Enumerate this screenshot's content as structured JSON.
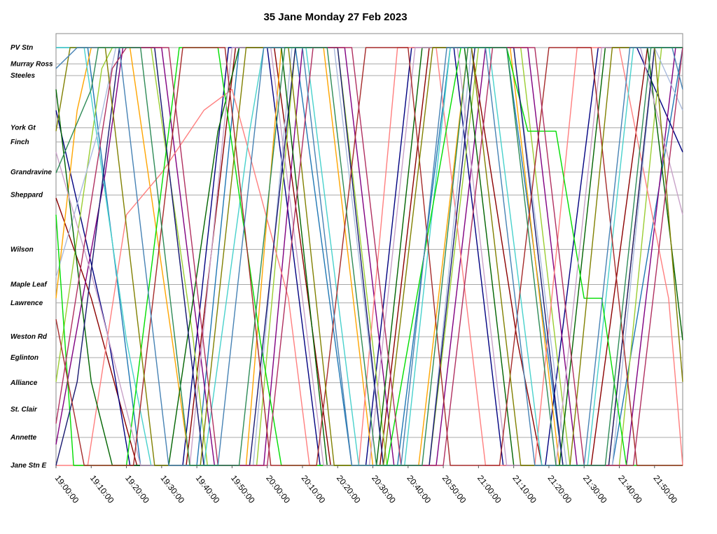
{
  "chart_data": {
    "type": "line",
    "title": "35 Jane Monday 27 Feb 2023",
    "xlabel": "",
    "ylabel": "",
    "grid": "horizontal lines at stops",
    "legend": "none",
    "x_axis": {
      "unit": "time of day",
      "range": [
        "19:00:00",
        "21:58:00"
      ],
      "ticks": [
        "19:00:00",
        "19:10:00",
        "19:20:00",
        "19:30:00",
        "19:40:00",
        "19:50:00",
        "20:00:00",
        "20:10:00",
        "20:20:00",
        "20:30:00",
        "20:40:00",
        "20:50:00",
        "21:00:00",
        "21:10:00",
        "21:20:00",
        "21:30:00",
        "21:40:00",
        "21:50:00"
      ]
    },
    "y_axis": {
      "unit": "stop position (0 = Jane Stn E, 100 = PV Stn)",
      "range": [
        0,
        100
      ],
      "stops": [
        {
          "name": "PV Stn",
          "pos": 100
        },
        {
          "name": "Murray Ross",
          "pos": 96.1
        },
        {
          "name": "Steeles",
          "pos": 93.3
        },
        {
          "name": "York Gt",
          "pos": 80.8
        },
        {
          "name": "Finch",
          "pos": 77.4
        },
        {
          "name": "Grandravine",
          "pos": 70.2
        },
        {
          "name": "Sheppard",
          "pos": 64.7
        },
        {
          "name": "Wilson",
          "pos": 51.7
        },
        {
          "name": "Maple Leaf",
          "pos": 43.3
        },
        {
          "name": "Lawrence",
          "pos": 38.9
        },
        {
          "name": "Weston Rd",
          "pos": 30.8
        },
        {
          "name": "Eglinton",
          "pos": 25.8
        },
        {
          "name": "Alliance",
          "pos": 19.8
        },
        {
          "name": "St. Clair",
          "pos": 13.4
        },
        {
          "name": "Annette",
          "pos": 6.7
        },
        {
          "name": "Jane Stn E",
          "pos": 0
        }
      ]
    },
    "series": [
      {
        "color": "#1f77b4",
        "points": [
          [
            0,
            100
          ],
          [
            9,
            100
          ],
          [
            24,
            0
          ],
          [
            40,
            0
          ],
          [
            52,
            100
          ],
          [
            68,
            100
          ],
          [
            84,
            0
          ],
          [
            97,
            0
          ],
          [
            112,
            100
          ],
          [
            128,
            100
          ],
          [
            144,
            0
          ],
          [
            158,
            0
          ],
          [
            178,
            100
          ]
        ]
      },
      {
        "color": "#8b0000",
        "points": [
          [
            0,
            64
          ],
          [
            10,
            40
          ],
          [
            23,
            0
          ],
          [
            37,
            0
          ],
          [
            51,
            100
          ],
          [
            62,
            100
          ],
          [
            78,
            0
          ],
          [
            92,
            0
          ],
          [
            106,
            100
          ],
          [
            118,
            100
          ],
          [
            131,
            30
          ],
          [
            138,
            0
          ],
          [
            152,
            0
          ],
          [
            168,
            100
          ],
          [
            176,
            100
          ]
        ]
      },
      {
        "color": "#000080",
        "points": [
          [
            0,
            85
          ],
          [
            15,
            30
          ],
          [
            21,
            0
          ],
          [
            36,
            0
          ],
          [
            49,
            100
          ],
          [
            60,
            100
          ],
          [
            75,
            0
          ],
          [
            88,
            0
          ],
          [
            101,
            100
          ],
          [
            113,
            100
          ],
          [
            127,
            0
          ],
          [
            139,
            0
          ],
          [
            154,
            100
          ],
          [
            165,
            100
          ],
          [
            178,
            75
          ]
        ]
      },
      {
        "color": "#ffa500",
        "points": [
          [
            0,
            40
          ],
          [
            6,
            85
          ],
          [
            10,
            100
          ],
          [
            21,
            100
          ],
          [
            33,
            30
          ],
          [
            38,
            0
          ],
          [
            54,
            0
          ],
          [
            64,
            100
          ],
          [
            76,
            100
          ],
          [
            90,
            0
          ],
          [
            103,
            0
          ],
          [
            117,
            100
          ],
          [
            129,
            100
          ],
          [
            143,
            0
          ],
          [
            157,
            0
          ],
          [
            170,
            100
          ],
          [
            178,
            100
          ]
        ]
      },
      {
        "color": "#800080",
        "points": [
          [
            0,
            5
          ],
          [
            14,
            70
          ],
          [
            19,
            100
          ],
          [
            30,
            100
          ],
          [
            45,
            0
          ],
          [
            59,
            0
          ],
          [
            70,
            100
          ],
          [
            82,
            100
          ],
          [
            96,
            0
          ],
          [
            108,
            0
          ],
          [
            122,
            100
          ],
          [
            134,
            100
          ],
          [
            148,
            0
          ],
          [
            162,
            0
          ],
          [
            176,
            100
          ],
          [
            178,
            100
          ]
        ]
      },
      {
        "color": "#9acd32",
        "points": [
          [
            0,
            20
          ],
          [
            13,
            95
          ],
          [
            16,
            100
          ],
          [
            27,
            100
          ],
          [
            39,
            30
          ],
          [
            43,
            0
          ],
          [
            57,
            0
          ],
          [
            68,
            100
          ],
          [
            80,
            100
          ],
          [
            94,
            0
          ],
          [
            106,
            0
          ],
          [
            120,
            100
          ],
          [
            132,
            100
          ],
          [
            146,
            0
          ],
          [
            160,
            0
          ],
          [
            172,
            100
          ],
          [
            178,
            100
          ]
        ]
      },
      {
        "color": "#ff7f7f",
        "points": [
          [
            0,
            0
          ],
          [
            9,
            0
          ],
          [
            20,
            60
          ],
          [
            30,
            70
          ],
          [
            42,
            85
          ],
          [
            50,
            90
          ],
          [
            66,
            40
          ],
          [
            72,
            0
          ],
          [
            86,
            0
          ],
          [
            97,
            100
          ],
          [
            108,
            100
          ],
          [
            122,
            0
          ],
          [
            136,
            0
          ],
          [
            148,
            100
          ],
          [
            160,
            100
          ],
          [
            174,
            40
          ],
          [
            178,
            0
          ]
        ]
      },
      {
        "color": "#48d1cc",
        "points": [
          [
            0,
            100
          ],
          [
            8,
            100
          ],
          [
            20,
            30
          ],
          [
            27,
            0
          ],
          [
            42,
            0
          ],
          [
            55,
            80
          ],
          [
            59,
            100
          ],
          [
            71,
            100
          ],
          [
            86,
            0
          ],
          [
            99,
            0
          ],
          [
            112,
            100
          ],
          [
            123,
            100
          ],
          [
            138,
            0
          ],
          [
            151,
            0
          ],
          [
            164,
            100
          ],
          [
            177,
            100
          ]
        ]
      },
      {
        "color": "#aabbdd",
        "points": [
          [
            0,
            45
          ],
          [
            12,
            80
          ],
          [
            17,
            100
          ],
          [
            28,
            100
          ],
          [
            42,
            0
          ],
          [
            56,
            0
          ],
          [
            67,
            100
          ],
          [
            79,
            100
          ],
          [
            93,
            0
          ],
          [
            106,
            0
          ],
          [
            118,
            100
          ],
          [
            130,
            100
          ],
          [
            145,
            0
          ],
          [
            158,
            0
          ],
          [
            170,
            100
          ],
          [
            178,
            85
          ]
        ]
      },
      {
        "color": "#006400",
        "points": [
          [
            0,
            90
          ],
          [
            10,
            20
          ],
          [
            16,
            0
          ],
          [
            32,
            0
          ],
          [
            46,
            80
          ],
          [
            52,
            100
          ],
          [
            64,
            100
          ],
          [
            77,
            0
          ],
          [
            91,
            0
          ],
          [
            104,
            100
          ],
          [
            116,
            100
          ],
          [
            130,
            0
          ],
          [
            143,
            0
          ],
          [
            156,
            100
          ],
          [
            168,
            100
          ],
          [
            178,
            30
          ]
        ]
      },
      {
        "color": "#00dd00",
        "points": [
          [
            0,
            60
          ],
          [
            5,
            0
          ],
          [
            20,
            0
          ],
          [
            35,
            100
          ],
          [
            46,
            100
          ],
          [
            58,
            30
          ],
          [
            64,
            0
          ],
          [
            78,
            0
          ],
          [
            94,
            0
          ],
          [
            115,
            100
          ],
          [
            128,
            100
          ],
          [
            134,
            80
          ],
          [
            142,
            80
          ],
          [
            150,
            40
          ],
          [
            155,
            40
          ],
          [
            162,
            0
          ],
          [
            178,
            0
          ]
        ]
      },
      {
        "color": "#c8a2c8",
        "points": [
          [
            0,
            75
          ],
          [
            12,
            40
          ],
          [
            24,
            0
          ],
          [
            38,
            0
          ],
          [
            50,
            100
          ],
          [
            61,
            100
          ],
          [
            76,
            0
          ],
          [
            89,
            0
          ],
          [
            102,
            100
          ],
          [
            114,
            100
          ],
          [
            128,
            0
          ],
          [
            142,
            0
          ],
          [
            155,
            100
          ],
          [
            166,
            100
          ],
          [
            178,
            60
          ]
        ]
      },
      {
        "color": "#191970",
        "points": [
          [
            0,
            0
          ],
          [
            6,
            20
          ],
          [
            18,
            100
          ],
          [
            28,
            100
          ],
          [
            42,
            0
          ],
          [
            55,
            0
          ],
          [
            68,
            100
          ],
          [
            80,
            100
          ],
          [
            93,
            0
          ],
          [
            106,
            0
          ],
          [
            119,
            100
          ],
          [
            130,
            100
          ],
          [
            144,
            0
          ],
          [
            157,
            0
          ],
          [
            170,
            100
          ],
          [
            178,
            100
          ]
        ]
      },
      {
        "color": "#a52a2a",
        "points": [
          [
            0,
            35
          ],
          [
            8,
            0
          ],
          [
            22,
            0
          ],
          [
            36,
            100
          ],
          [
            48,
            100
          ],
          [
            61,
            0
          ],
          [
            74,
            0
          ],
          [
            88,
            100
          ],
          [
            100,
            100
          ],
          [
            112,
            0
          ],
          [
            126,
            0
          ],
          [
            140,
            100
          ],
          [
            152,
            100
          ],
          [
            165,
            0
          ],
          [
            178,
            0
          ]
        ]
      },
      {
        "color": "#808000",
        "points": [
          [
            0,
            80
          ],
          [
            4,
            100
          ],
          [
            14,
            100
          ],
          [
            28,
            0
          ],
          [
            41,
            0
          ],
          [
            54,
            100
          ],
          [
            66,
            100
          ],
          [
            79,
            0
          ],
          [
            93,
            0
          ],
          [
            107,
            100
          ],
          [
            118,
            100
          ],
          [
            132,
            0
          ],
          [
            146,
            0
          ],
          [
            158,
            100
          ],
          [
            170,
            100
          ],
          [
            178,
            20
          ]
        ]
      },
      {
        "color": "#b03060",
        "points": [
          [
            0,
            10
          ],
          [
            16,
            95
          ],
          [
            20,
            100
          ],
          [
            32,
            100
          ],
          [
            46,
            0
          ],
          [
            60,
            0
          ],
          [
            73,
            100
          ],
          [
            84,
            100
          ],
          [
            98,
            0
          ],
          [
            110,
            0
          ],
          [
            124,
            100
          ],
          [
            136,
            100
          ],
          [
            150,
            0
          ],
          [
            164,
            0
          ],
          [
            178,
            100
          ]
        ]
      },
      {
        "color": "#4682b4",
        "points": [
          [
            0,
            95
          ],
          [
            6,
            100
          ],
          [
            18,
            100
          ],
          [
            32,
            0
          ],
          [
            46,
            0
          ],
          [
            59,
            100
          ],
          [
            70,
            100
          ],
          [
            84,
            0
          ],
          [
            98,
            0
          ],
          [
            111,
            100
          ],
          [
            122,
            100
          ],
          [
            136,
            0
          ],
          [
            150,
            0
          ],
          [
            163,
            100
          ],
          [
            175,
            100
          ],
          [
            178,
            90
          ]
        ]
      },
      {
        "color": "#2e8b57",
        "points": [
          [
            0,
            70
          ],
          [
            10,
            90
          ],
          [
            12,
            100
          ],
          [
            24,
            100
          ],
          [
            38,
            0
          ],
          [
            52,
            0
          ],
          [
            65,
            100
          ],
          [
            77,
            100
          ],
          [
            91,
            0
          ],
          [
            104,
            0
          ],
          [
            117,
            100
          ],
          [
            128,
            100
          ],
          [
            142,
            0
          ],
          [
            156,
            0
          ],
          [
            169,
            100
          ],
          [
            178,
            100
          ]
        ]
      }
    ]
  }
}
